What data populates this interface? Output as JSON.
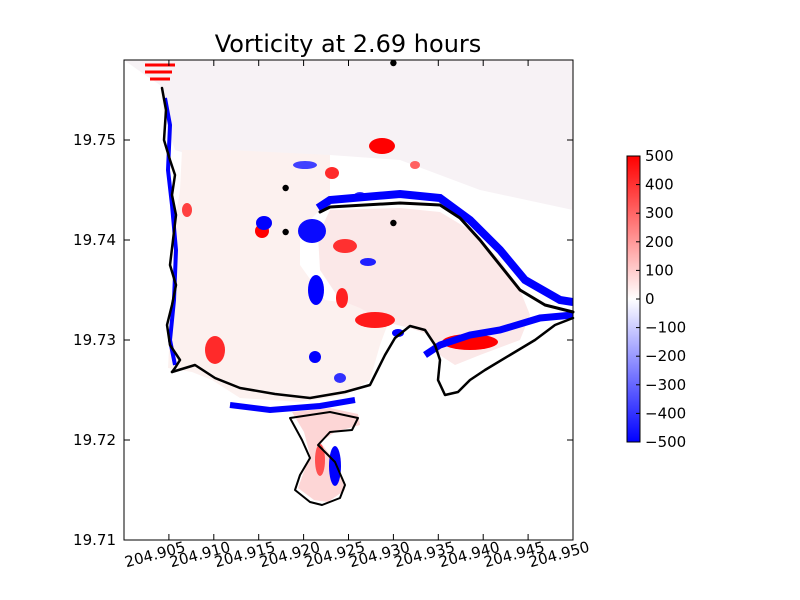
{
  "chart_data": {
    "type": "heatmap",
    "title": "Vorticity at 2.69 hours",
    "xlabel": "",
    "ylabel": "",
    "xlim": [
      204.9,
      204.95
    ],
    "ylim": [
      19.71,
      19.758
    ],
    "x_ticks": [
      204.905,
      204.91,
      204.915,
      204.92,
      204.925,
      204.93,
      204.935,
      204.94,
      204.945,
      204.95
    ],
    "x_tick_labels": [
      "204.905",
      "204.910",
      "204.915",
      "204.920",
      "204.925",
      "204.930",
      "204.935",
      "204.940",
      "204.945",
      "204.950"
    ],
    "y_ticks": [
      19.71,
      19.72,
      19.73,
      19.74,
      19.75
    ],
    "y_tick_labels": [
      "19.71",
      "19.72",
      "19.73",
      "19.74",
      "19.75"
    ],
    "colormap": "bwr",
    "colors": {
      "min": "#0000ff",
      "mid": "#ffffff",
      "max": "#ff0000"
    },
    "colorbar": {
      "range": [
        -500,
        500
      ],
      "ticks": [
        500,
        400,
        300,
        200,
        100,
        0,
        -100,
        -200,
        -300,
        -400,
        -500
      ],
      "tick_labels": [
        "500",
        "400",
        "300",
        "200",
        "100",
        "0",
        "−100",
        "−200",
        "−300",
        "−400",
        "−500"
      ],
      "placement": "right"
    },
    "gauge_points": [
      {
        "x": 204.93,
        "y": 19.7577
      },
      {
        "x": 204.918,
        "y": 19.7452
      },
      {
        "x": 204.93,
        "y": 19.7417
      },
      {
        "x": 204.918,
        "y": 19.7408
      }
    ],
    "grid": false
  }
}
